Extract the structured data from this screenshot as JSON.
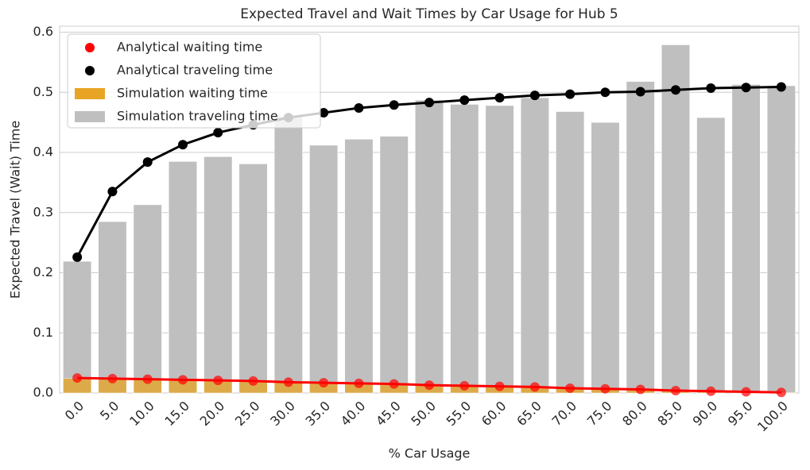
{
  "chart_data": {
    "type": "bar",
    "title": "Expected Travel and Wait Times by Car Usage for Hub 5",
    "xlabel": "% Car Usage",
    "ylabel": "Expected Travel (Wait) Time",
    "categories": [
      "0.0",
      "5.0",
      "10.0",
      "15.0",
      "20.0",
      "25.0",
      "30.0",
      "35.0",
      "40.0",
      "45.0",
      "50.0",
      "55.0",
      "60.0",
      "65.0",
      "70.0",
      "75.0",
      "80.0",
      "85.0",
      "90.0",
      "95.0",
      "100.0"
    ],
    "series": [
      {
        "name": "Analytical waiting time",
        "color": "#ff0000",
        "style": "line-points",
        "values": [
          0.025,
          0.024,
          0.023,
          0.022,
          0.021,
          0.02,
          0.018,
          0.017,
          0.016,
          0.015,
          0.013,
          0.012,
          0.011,
          0.01,
          0.008,
          0.007,
          0.006,
          0.004,
          0.003,
          0.002,
          0.001
        ]
      },
      {
        "name": "Analytical traveling time",
        "color": "#000000",
        "style": "line-points",
        "values": [
          0.226,
          0.335,
          0.384,
          0.413,
          0.433,
          0.446,
          0.458,
          0.466,
          0.474,
          0.479,
          0.483,
          0.487,
          0.491,
          0.495,
          0.497,
          0.5,
          0.501,
          0.504,
          0.507,
          0.508,
          0.509
        ]
      },
      {
        "name": "Simulation waiting time",
        "color": "#e8a424",
        "style": "bar",
        "values": [
          0.024,
          0.023,
          0.022,
          0.021,
          0.02,
          0.019,
          0.018,
          0.016,
          0.015,
          0.014,
          0.013,
          0.012,
          0.011,
          0.01,
          0.008,
          0.007,
          0.006,
          0.004,
          0.003,
          0.002,
          0.001
        ]
      },
      {
        "name": "Simulation traveling time",
        "color": "#bfbfbf",
        "style": "bar",
        "values": [
          0.219,
          0.285,
          0.313,
          0.385,
          0.393,
          0.381,
          0.46,
          0.412,
          0.422,
          0.427,
          0.487,
          0.48,
          0.478,
          0.491,
          0.468,
          0.45,
          0.518,
          0.579,
          0.458,
          0.513,
          0.511
        ]
      }
    ],
    "ylim": [
      0,
      0.61
    ],
    "yticks": [
      {
        "value": 0,
        "label": "0.0"
      },
      0.1,
      0.2,
      0.3,
      0.4,
      0.5,
      0.6
    ],
    "grid": true,
    "legend": "upper left"
  }
}
